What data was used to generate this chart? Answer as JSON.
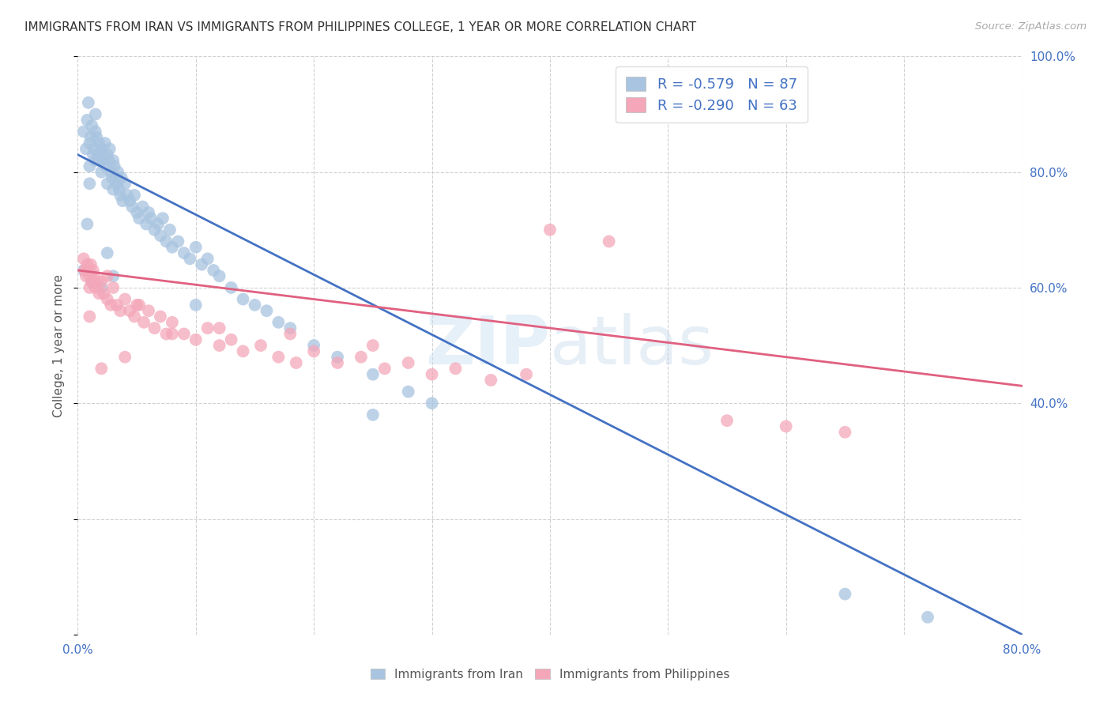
{
  "title": "IMMIGRANTS FROM IRAN VS IMMIGRANTS FROM PHILIPPINES COLLEGE, 1 YEAR OR MORE CORRELATION CHART",
  "source": "Source: ZipAtlas.com",
  "ylabel": "College, 1 year or more",
  "xlim": [
    0.0,
    0.8
  ],
  "ylim": [
    0.0,
    1.0
  ],
  "x_ticks": [
    0.0,
    0.1,
    0.2,
    0.3,
    0.4,
    0.5,
    0.6,
    0.7,
    0.8
  ],
  "x_tick_labels": [
    "0.0%",
    "",
    "",
    "",
    "",
    "",
    "",
    "",
    "80.0%"
  ],
  "y_ticks_right": [
    0.4,
    0.6,
    0.8,
    1.0
  ],
  "y_tick_labels_right": [
    "40.0%",
    "60.0%",
    "80.0%",
    "100.0%"
  ],
  "legend_iran_R": "-0.579",
  "legend_iran_N": "87",
  "legend_phil_R": "-0.290",
  "legend_phil_N": "63",
  "iran_color": "#a8c4e0",
  "phil_color": "#f4a7b9",
  "iran_line_color": "#4472c4",
  "phil_line_color": "#e06080",
  "iran_line_x0": 0.0,
  "iran_line_y0": 0.83,
  "iran_line_x1": 0.8,
  "iran_line_y1": 0.0,
  "phil_line_x0": 0.0,
  "phil_line_y0": 0.63,
  "phil_line_x1": 0.8,
  "phil_line_y1": 0.43,
  "iran_scatter_x": [
    0.005,
    0.007,
    0.008,
    0.009,
    0.01,
    0.01,
    0.01,
    0.011,
    0.012,
    0.013,
    0.014,
    0.015,
    0.015,
    0.015,
    0.016,
    0.017,
    0.018,
    0.019,
    0.02,
    0.02,
    0.021,
    0.022,
    0.023,
    0.024,
    0.025,
    0.025,
    0.026,
    0.027,
    0.028,
    0.029,
    0.03,
    0.03,
    0.031,
    0.032,
    0.033,
    0.034,
    0.035,
    0.036,
    0.037,
    0.038,
    0.04,
    0.042,
    0.044,
    0.046,
    0.048,
    0.05,
    0.052,
    0.055,
    0.058,
    0.06,
    0.062,
    0.065,
    0.068,
    0.07,
    0.072,
    0.075,
    0.078,
    0.08,
    0.085,
    0.09,
    0.095,
    0.1,
    0.105,
    0.11,
    0.115,
    0.12,
    0.13,
    0.14,
    0.15,
    0.16,
    0.17,
    0.18,
    0.2,
    0.22,
    0.25,
    0.28,
    0.3,
    0.03,
    0.1,
    0.25,
    0.005,
    0.008,
    0.012,
    0.02,
    0.025,
    0.65,
    0.72
  ],
  "iran_scatter_y": [
    0.87,
    0.84,
    0.89,
    0.92,
    0.85,
    0.81,
    0.78,
    0.86,
    0.88,
    0.83,
    0.84,
    0.9,
    0.82,
    0.87,
    0.86,
    0.83,
    0.85,
    0.82,
    0.84,
    0.8,
    0.83,
    0.82,
    0.85,
    0.81,
    0.83,
    0.78,
    0.82,
    0.84,
    0.8,
    0.79,
    0.82,
    0.77,
    0.81,
    0.79,
    0.78,
    0.8,
    0.77,
    0.76,
    0.79,
    0.75,
    0.78,
    0.76,
    0.75,
    0.74,
    0.76,
    0.73,
    0.72,
    0.74,
    0.71,
    0.73,
    0.72,
    0.7,
    0.71,
    0.69,
    0.72,
    0.68,
    0.7,
    0.67,
    0.68,
    0.66,
    0.65,
    0.67,
    0.64,
    0.65,
    0.63,
    0.62,
    0.6,
    0.58,
    0.57,
    0.56,
    0.54,
    0.53,
    0.5,
    0.48,
    0.45,
    0.42,
    0.4,
    0.62,
    0.57,
    0.38,
    0.63,
    0.71,
    0.61,
    0.6,
    0.66,
    0.07,
    0.03
  ],
  "phil_scatter_x": [
    0.005,
    0.006,
    0.007,
    0.008,
    0.009,
    0.01,
    0.01,
    0.011,
    0.012,
    0.013,
    0.014,
    0.015,
    0.016,
    0.018,
    0.02,
    0.022,
    0.025,
    0.028,
    0.03,
    0.033,
    0.036,
    0.04,
    0.044,
    0.048,
    0.052,
    0.056,
    0.06,
    0.065,
    0.07,
    0.075,
    0.08,
    0.09,
    0.1,
    0.11,
    0.12,
    0.13,
    0.14,
    0.155,
    0.17,
    0.185,
    0.2,
    0.22,
    0.24,
    0.26,
    0.28,
    0.3,
    0.32,
    0.35,
    0.38,
    0.01,
    0.025,
    0.05,
    0.08,
    0.12,
    0.18,
    0.25,
    0.4,
    0.45,
    0.55,
    0.6,
    0.65,
    0.02,
    0.04
  ],
  "phil_scatter_y": [
    0.65,
    0.63,
    0.62,
    0.64,
    0.63,
    0.62,
    0.6,
    0.64,
    0.61,
    0.63,
    0.62,
    0.6,
    0.61,
    0.59,
    0.61,
    0.59,
    0.58,
    0.57,
    0.6,
    0.57,
    0.56,
    0.58,
    0.56,
    0.55,
    0.57,
    0.54,
    0.56,
    0.53,
    0.55,
    0.52,
    0.54,
    0.52,
    0.51,
    0.53,
    0.5,
    0.51,
    0.49,
    0.5,
    0.48,
    0.47,
    0.49,
    0.47,
    0.48,
    0.46,
    0.47,
    0.45,
    0.46,
    0.44,
    0.45,
    0.55,
    0.62,
    0.57,
    0.52,
    0.53,
    0.52,
    0.5,
    0.7,
    0.68,
    0.37,
    0.36,
    0.35,
    0.46,
    0.48
  ]
}
